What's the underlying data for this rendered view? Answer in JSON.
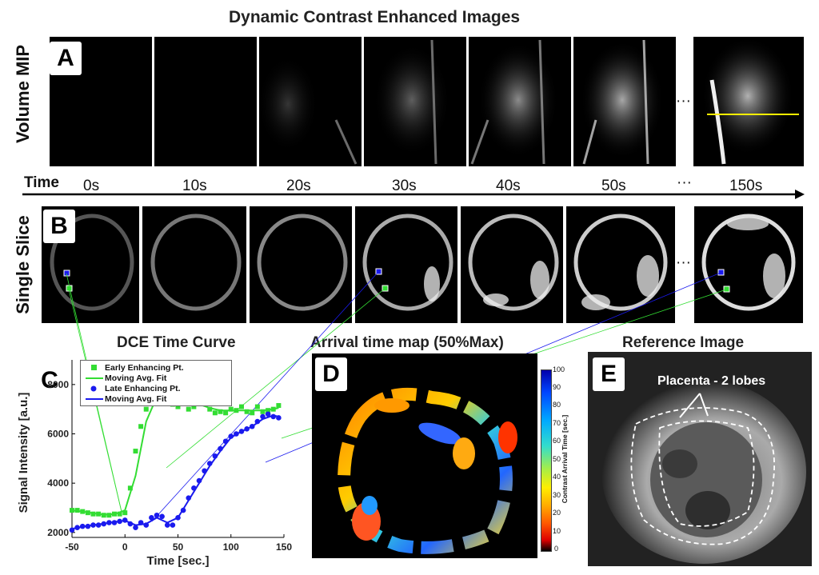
{
  "titles": {
    "top": "Dynamic Contrast Enhanced Images",
    "curve": "DCE Time Curve",
    "arrival": "Arrival time map (50%Max)",
    "reference": "Reference Image"
  },
  "row_labels": {
    "volume": "Volume MIP",
    "slice": "Single Slice"
  },
  "panels": {
    "a": "A",
    "b": "B",
    "c": "C",
    "d": "D",
    "e": "E"
  },
  "timeline": {
    "label": "Time",
    "ellipsis": "···",
    "times": [
      "0s",
      "10s",
      "20s",
      "30s",
      "40s",
      "50s",
      "150s"
    ]
  },
  "reference": {
    "annotation": "Placenta - 2 lobes"
  },
  "colorbar": {
    "label": "Contrast Arrival Time [sec.]",
    "ticks": [
      "100",
      "90",
      "80",
      "70",
      "60",
      "50",
      "40",
      "30",
      "20",
      "10",
      "0"
    ]
  },
  "colors": {
    "green": "#33dd33",
    "blue": "#1a1aee",
    "yellow": "#ffee00"
  },
  "chart_data": {
    "type": "scatter",
    "title": "DCE Time Curve",
    "xlabel": "Time [sec.]",
    "ylabel": "Signal Intensity [a.u.]",
    "xlim": [
      -50,
      150
    ],
    "ylim": [
      1800,
      9000
    ],
    "xticks": [
      "-50",
      "0",
      "50",
      "100",
      "150"
    ],
    "yticks": [
      "2000",
      "4000",
      "6000",
      "8000"
    ],
    "legend_position": "top-left",
    "series": [
      {
        "name": "Early Enhancing Pt.",
        "color": "#33dd33",
        "x": [
          -50,
          -45,
          -40,
          -35,
          -30,
          -25,
          -20,
          -15,
          -10,
          -5,
          0,
          5,
          10,
          15,
          20,
          25,
          30,
          35,
          40,
          45,
          50,
          55,
          60,
          65,
          70,
          75,
          80,
          85,
          90,
          95,
          100,
          105,
          110,
          115,
          120,
          125,
          130,
          135,
          140,
          145
        ],
        "y": [
          2900,
          2900,
          2850,
          2800,
          2750,
          2750,
          2700,
          2700,
          2750,
          2750,
          2800,
          3800,
          5300,
          6300,
          7000,
          7300,
          7700,
          7800,
          7400,
          7200,
          7100,
          7300,
          7000,
          7100,
          7300,
          7250,
          7000,
          6850,
          6900,
          6850,
          7000,
          6950,
          7100,
          6900,
          6850,
          7100,
          6900,
          6950,
          7000,
          7150
        ]
      },
      {
        "name": "Moving Avg. Fit",
        "color": "#33dd33",
        "line": true,
        "x": [
          -50,
          -40,
          -30,
          -20,
          -10,
          0,
          10,
          20,
          30,
          40,
          50,
          60,
          70,
          80,
          90,
          100,
          110,
          120,
          130,
          140,
          145
        ],
        "y": [
          2900,
          2850,
          2780,
          2720,
          2740,
          2900,
          4300,
          6500,
          7500,
          7450,
          7250,
          7150,
          7200,
          7050,
          6950,
          6950,
          6950,
          6950,
          6950,
          7000,
          7050
        ]
      },
      {
        "name": "Late Enhancing Pt.",
        "color": "#1a1aee",
        "x": [
          -50,
          -45,
          -40,
          -35,
          -30,
          -25,
          -20,
          -15,
          -10,
          -5,
          0,
          5,
          10,
          15,
          20,
          25,
          30,
          35,
          40,
          45,
          50,
          55,
          60,
          65,
          70,
          75,
          80,
          85,
          90,
          95,
          100,
          105,
          110,
          115,
          120,
          125,
          130,
          135,
          140,
          145
        ],
        "y": [
          2100,
          2200,
          2250,
          2250,
          2300,
          2300,
          2350,
          2400,
          2400,
          2450,
          2500,
          2350,
          2200,
          2400,
          2300,
          2600,
          2700,
          2650,
          2300,
          2300,
          2600,
          2900,
          3400,
          3800,
          4100,
          4500,
          4800,
          5100,
          5400,
          5700,
          5900,
          6000,
          6100,
          6200,
          6300,
          6500,
          6700,
          6800,
          6700,
          6650
        ]
      },
      {
        "name": "Moving Avg. Fit",
        "color": "#1a1aee",
        "line": true,
        "x": [
          -50,
          -40,
          -30,
          -20,
          -10,
          0,
          10,
          20,
          30,
          40,
          50,
          60,
          70,
          80,
          90,
          100,
          110,
          120,
          130,
          140,
          145
        ],
        "y": [
          2150,
          2230,
          2300,
          2360,
          2430,
          2480,
          2300,
          2350,
          2600,
          2400,
          2600,
          3300,
          4000,
          4700,
          5300,
          5850,
          6100,
          6300,
          6600,
          6750,
          6700
        ]
      }
    ]
  }
}
